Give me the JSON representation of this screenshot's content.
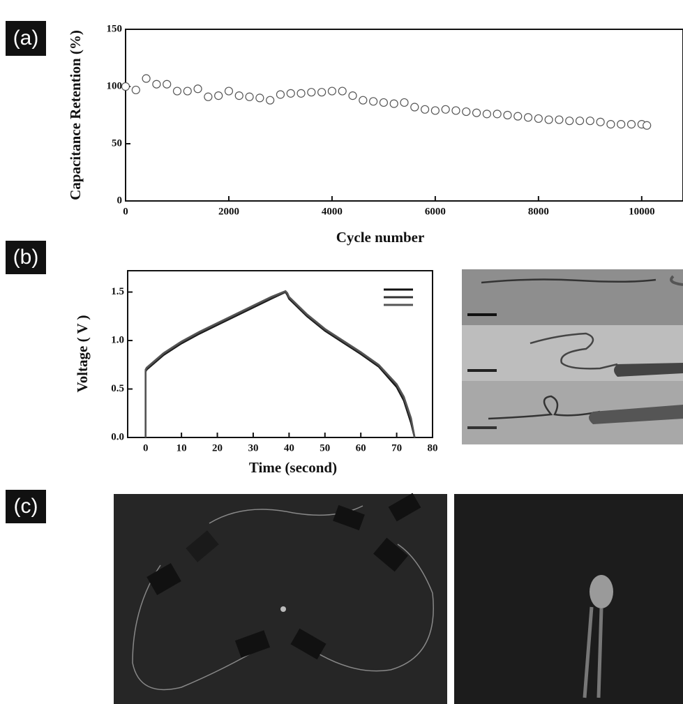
{
  "panel_labels": [
    "(a)",
    "(b)",
    "(c)"
  ],
  "chart_data": [
    {
      "type": "scatter",
      "x_label": "Cycle number",
      "y_label": "Capacitance Retention (%)",
      "x": [
        0,
        200,
        400,
        600,
        800,
        1000,
        1200,
        1400,
        1600,
        1800,
        2000,
        2200,
        2400,
        2600,
        2800,
        3000,
        3200,
        3400,
        3600,
        3800,
        4000,
        4200,
        4400,
        4600,
        4800,
        5000,
        5200,
        5400,
        5600,
        5800,
        6000,
        6200,
        6400,
        6600,
        6800,
        7000,
        7200,
        7400,
        7600,
        7800,
        8000,
        8200,
        8400,
        8600,
        8800,
        9000,
        9200,
        9400,
        9600,
        9800,
        10000,
        10100
      ],
      "values": [
        100,
        97,
        107,
        102,
        102,
        96,
        96,
        98,
        91,
        92,
        96,
        92,
        91,
        90,
        88,
        93,
        94,
        94,
        95,
        95,
        96,
        96,
        92,
        88,
        87,
        86,
        85,
        86,
        82,
        80,
        79,
        80,
        79,
        78,
        77,
        76,
        76,
        75,
        74,
        73,
        72,
        71,
        71,
        70,
        70,
        70,
        69,
        67,
        67,
        67,
        67,
        66
      ],
      "color": "#555555",
      "xlim": [
        0,
        10800
      ],
      "xticks": [
        0,
        2000,
        4000,
        6000,
        8000,
        10000
      ],
      "ylim": [
        0,
        150
      ],
      "yticks": [
        0,
        50,
        100,
        150
      ]
    },
    {
      "type": "line",
      "x_label": "Time (second)",
      "y_label": "Voltage ( V )",
      "x": [
        0,
        0,
        0.3,
        5,
        10,
        15,
        20,
        25,
        30,
        35,
        39,
        39.5,
        40,
        45,
        50,
        55,
        60,
        65,
        70,
        72,
        74,
        75
      ],
      "series": [
        {
          "color": "#111111",
          "values": [
            0,
            0.68,
            0.7,
            0.85,
            0.97,
            1.07,
            1.16,
            1.25,
            1.34,
            1.43,
            1.5,
            1.47,
            1.43,
            1.25,
            1.1,
            0.98,
            0.86,
            0.73,
            0.52,
            0.38,
            0.15,
            0
          ]
        },
        {
          "color": "#333333",
          "values": [
            0,
            0.69,
            0.71,
            0.86,
            0.98,
            1.08,
            1.17,
            1.26,
            1.35,
            1.44,
            1.5,
            1.48,
            1.44,
            1.26,
            1.11,
            0.99,
            0.87,
            0.74,
            0.54,
            0.4,
            0.18,
            0
          ]
        },
        {
          "color": "#555555",
          "values": [
            0,
            0.7,
            0.72,
            0.87,
            0.99,
            1.09,
            1.18,
            1.27,
            1.36,
            1.45,
            1.51,
            1.49,
            1.45,
            1.27,
            1.12,
            1.0,
            0.88,
            0.75,
            0.55,
            0.42,
            0.2,
            0
          ]
        }
      ],
      "xlim": [
        -5,
        80
      ],
      "xticks": [
        0,
        10,
        20,
        30,
        40,
        50,
        60,
        70,
        80
      ],
      "ylim": [
        0,
        1.72
      ],
      "yticks": [
        {
          "value": 0,
          "label": "0.0"
        },
        0.5,
        {
          "value": 1,
          "label": "1.0"
        },
        1.5
      ]
    }
  ]
}
